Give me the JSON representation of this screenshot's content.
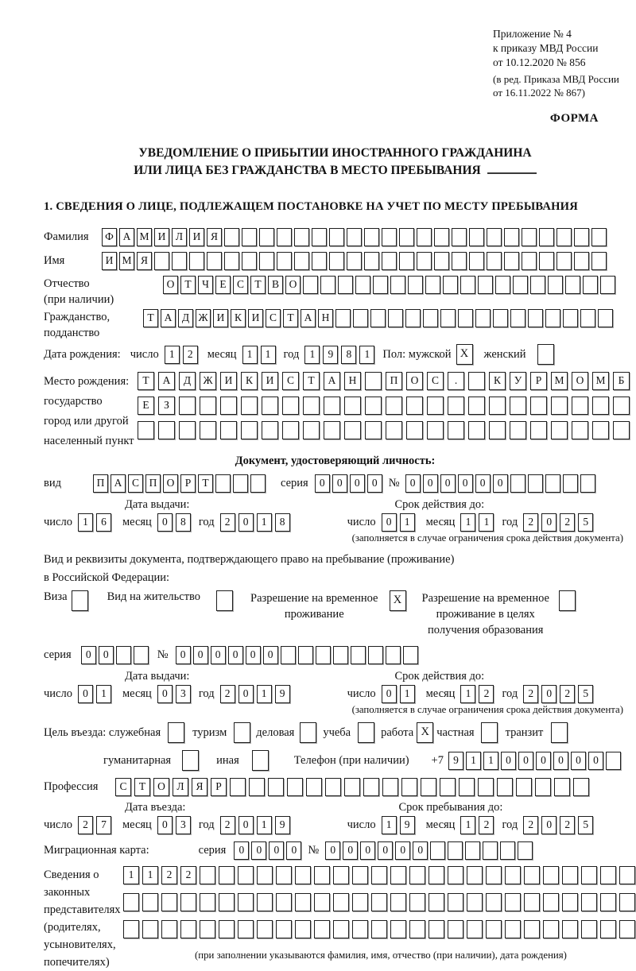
{
  "page": {
    "appendix": [
      "Приложение № 4",
      "к приказу МВД России",
      "от 10.12.2020 № 856"
    ],
    "appendix_note": [
      "(в ред. Приказа МВД России",
      "от 16.11.2022 № 867)"
    ],
    "form_word": "ФОРМА",
    "title1": "УВЕДОМЛЕНИЕ О ПРИБЫТИИ ИНОСТРАННОГО ГРАЖДАНИНА",
    "title2": "ИЛИ ЛИЦА БЕЗ ГРАЖДАНСТВА В МЕСТО ПРЕБЫВАНИЯ",
    "section1_title": "1. СВЕДЕНИЯ О ЛИЦЕ, ПОДЛЕЖАЩЕМ ПОСТАНОВКЕ НА УЧЕТ ПО МЕСТУ ПРЕБЫВАНИЯ"
  },
  "labels": {
    "surname": "Фамилия",
    "name": "Имя",
    "patronymic": "Отчество",
    "patronymic2": "(при наличии)",
    "citizenship": "Гражданство,",
    "citizenship2": "подданство",
    "birth_date": "Дата рождения:",
    "day": "число",
    "month": "месяц",
    "year": "год",
    "sex": "Пол: мужской",
    "female": "женский",
    "birth_place": "Место рождения:",
    "state": "государство",
    "city1": "город или другой",
    "city2": "населенный пункт",
    "identity_doc": "Документ, удостоверяющий личность:",
    "kind": "вид",
    "series": "серия",
    "number_sign": "№",
    "issue_date": "Дата выдачи:",
    "valid_until": "Срок действия до:",
    "valid_note": "(заполняется в случае ограничения срока действия документа)",
    "resid_doc1": "Вид и реквизиты документа, подтверждающего право на пребывание (проживание)",
    "resid_doc2": "в Российской Федерации:",
    "visa": "Виза",
    "residence_permit": "Вид на жительство",
    "temp_permit1": "Разрешение на временное",
    "temp_permit2": "проживание",
    "edu_permit1": "Разрешение на временное",
    "edu_permit2": "проживание в целях",
    "edu_permit3": "получения образования",
    "purpose": "Цель въезда: служебная",
    "tourism": "туризм",
    "business": "деловая",
    "study": "учеба",
    "work": "работа",
    "private": "частная",
    "transit": "транзит",
    "humanitarian": "гуманитарная",
    "other": "иная",
    "phone": "Телефон (при наличии)",
    "phone_prefix": "+7",
    "profession": "Профессия",
    "entry_date": "Дата въезда:",
    "stay_until": "Срок пребывания до:",
    "migration_card": "Миграционная карта:",
    "legal1": "Сведения о",
    "legal2": "законных",
    "legal3": "представителях",
    "legal4": "(родителях,",
    "legal5": "усыновителях,",
    "legal6": "попечителях)",
    "legal_note": "(при заполнении указываются фамилия, имя, отчество (при наличии), дата рождения)"
  },
  "values": {
    "surname": {
      "value": "ФАМИЛИЯ",
      "cells": 29
    },
    "name": {
      "value": "ИМЯ",
      "cells": 29
    },
    "patronymic": {
      "value": "ОТЧЕСТВО",
      "cells": 26
    },
    "citizenship": {
      "value": "ТАДЖИКИСТАН",
      "cells": 27
    },
    "birth_day": {
      "value": "12",
      "cells": 2
    },
    "birth_month": {
      "value": "11",
      "cells": 2
    },
    "birth_year": {
      "value": "1981",
      "cells": 4
    },
    "sex_male": "X",
    "sex_female": "",
    "birth_place_row1": {
      "value": "ТАДЖИКИСТАН ПОС. КУРМОМБ",
      "cells": 24
    },
    "birth_place_row2": {
      "value": "ЕЗ",
      "cells": 24
    },
    "birth_place_row3": {
      "value": "",
      "cells": 24
    },
    "doc_kind": {
      "value": "ПАСПОРТ",
      "cells": 10
    },
    "doc_series": {
      "value": "0000",
      "cells": 4
    },
    "doc_number": {
      "value": "000000",
      "cells": 11
    },
    "doc_issue_day": {
      "value": "16",
      "cells": 2
    },
    "doc_issue_month": {
      "value": "08",
      "cells": 2
    },
    "doc_issue_year": {
      "value": "2018",
      "cells": 4
    },
    "doc_valid_day": {
      "value": "01",
      "cells": 2
    },
    "doc_valid_month": {
      "value": "11",
      "cells": 2
    },
    "doc_valid_year": {
      "value": "2025",
      "cells": 4
    },
    "visa_check": "",
    "residence_check": "",
    "temp_check": "X",
    "edu_check": "",
    "resid_series": {
      "value": "00",
      "cells": 4
    },
    "resid_number": {
      "value": "000000",
      "cells": 14
    },
    "resid_issue_day": {
      "value": "01",
      "cells": 2
    },
    "resid_issue_month": {
      "value": "03",
      "cells": 2
    },
    "resid_issue_year": {
      "value": "2019",
      "cells": 4
    },
    "resid_valid_day": {
      "value": "01",
      "cells": 2
    },
    "resid_valid_month": {
      "value": "12",
      "cells": 2
    },
    "resid_valid_year": {
      "value": "2025",
      "cells": 4
    },
    "purpose_official": "",
    "purpose_tourism": "",
    "purpose_business": "",
    "purpose_study": "",
    "purpose_work": "X",
    "purpose_private": "",
    "purpose_transit": "",
    "purpose_humanitarian": "",
    "purpose_other": "",
    "phone": {
      "value": "911000000",
      "cells": 10
    },
    "profession": {
      "value": "СТОЛЯР",
      "cells": 25
    },
    "entry_day": {
      "value": "27",
      "cells": 2
    },
    "entry_month": {
      "value": "03",
      "cells": 2
    },
    "entry_year": {
      "value": "2019",
      "cells": 4
    },
    "stay_day": {
      "value": "19",
      "cells": 2
    },
    "stay_month": {
      "value": "12",
      "cells": 2
    },
    "stay_year": {
      "value": "2025",
      "cells": 4
    },
    "mig_series": {
      "value": "0000",
      "cells": 4
    },
    "mig_number": {
      "value": "000000",
      "cells": 12
    },
    "legal_row1": {
      "value": "1122",
      "cells": 27
    },
    "legal_row2": {
      "value": "",
      "cells": 27
    },
    "legal_row3": {
      "value": "",
      "cells": 27
    }
  }
}
